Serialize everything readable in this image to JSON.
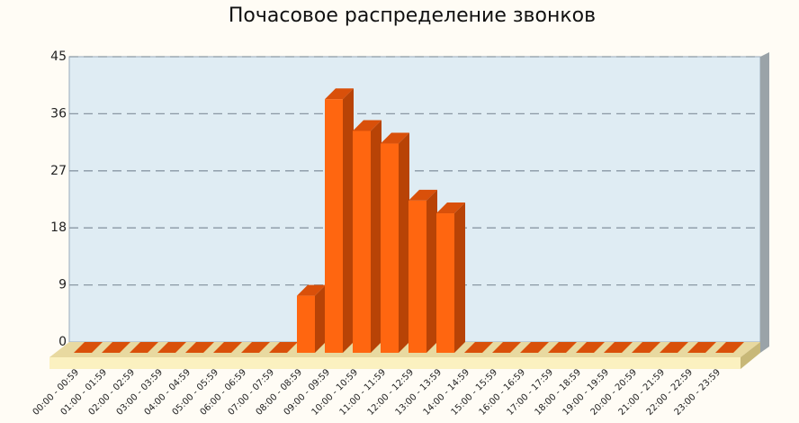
{
  "chart_data": {
    "type": "bar3d",
    "title": "Почасовое распределение звонков",
    "categories": [
      "00:00 - 00:59",
      "01:00 - 01:59",
      "02:00 - 02:59",
      "03:00 - 03:59",
      "04:00 - 04:59",
      "05:00 - 05:59",
      "06:00 - 06:59",
      "07:00 - 07:59",
      "08:00 - 08:59",
      "09:00 - 09:59",
      "10:00 - 10:59",
      "11:00 - 11:59",
      "12:00 - 12:59",
      "13:00 - 13:59",
      "14:00 - 14:59",
      "15:00 - 15:59",
      "16:00 - 16:59",
      "17:00 - 17:59",
      "18:00 - 18:59",
      "19:00 - 19:59",
      "20:00 - 20:59",
      "21:00 - 21:59",
      "22:00 - 22:59",
      "23:00 - 23:59"
    ],
    "values": [
      0,
      0,
      0,
      0,
      0,
      0,
      0,
      0,
      9,
      40,
      35,
      33,
      24,
      22,
      0,
      0,
      0,
      0,
      0,
      0,
      0,
      0,
      0,
      0
    ],
    "color": "#ff6610",
    "ylim": [
      0,
      45
    ],
    "yticks": [
      0,
      9,
      18,
      27,
      36,
      45
    ],
    "grid": true
  }
}
